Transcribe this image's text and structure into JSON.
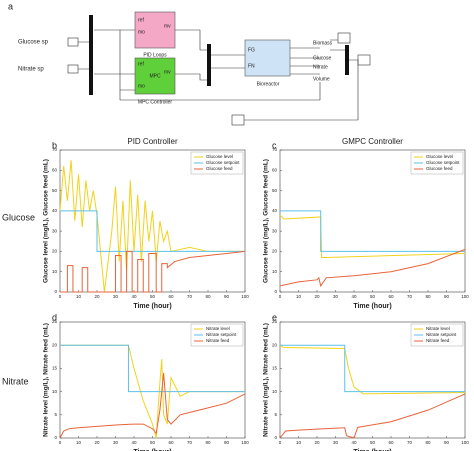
{
  "diagram": {
    "label": "a",
    "inputs": [
      "Glucose sp",
      "Nitrate sp"
    ],
    "pid": {
      "name": "PID Loops",
      "ports": [
        "ref",
        "mo",
        "mv"
      ]
    },
    "mpc": {
      "name": "MPC",
      "caption": "MPC Controller",
      "ports": [
        "ref",
        "mo",
        "mv"
      ]
    },
    "bioreactor": {
      "name": "Bioreactor",
      "ports": [
        "FG",
        "FN"
      ]
    },
    "outputs": [
      "Biomass",
      "Glucose",
      "Nitrate",
      "Volume"
    ]
  },
  "row_labels": [
    "Glucose",
    "Nitrate"
  ],
  "chart_data": [
    {
      "type": "line",
      "panel": "b",
      "title": "PID Controller",
      "xlabel": "Time (hour)",
      "ylabel": "Glucose level (mg/L), Glucose feed (mL)",
      "xlim": [
        0,
        100
      ],
      "xticks": [
        0,
        10,
        20,
        30,
        40,
        50,
        60,
        70,
        80,
        90,
        100
      ],
      "ylim": [
        0,
        70
      ],
      "yticks": [
        0,
        10,
        20,
        30,
        40,
        50,
        60,
        70
      ],
      "legend": "upper right",
      "series": [
        {
          "name": "Glucose level",
          "color": "#f2d21b",
          "x": [
            0,
            2,
            4,
            6,
            8,
            10,
            12,
            14,
            16,
            18,
            20,
            24,
            28,
            30,
            32,
            34,
            36,
            38,
            40,
            42,
            44,
            46,
            48,
            50,
            52,
            54,
            56,
            58,
            60,
            70,
            80,
            90,
            100
          ],
          "values": [
            40,
            62,
            45,
            65,
            35,
            58,
            32,
            55,
            40,
            50,
            38,
            0,
            30,
            52,
            15,
            45,
            10,
            55,
            20,
            48,
            15,
            45,
            25,
            40,
            15,
            35,
            25,
            30,
            20,
            22,
            20,
            20,
            20
          ]
        },
        {
          "name": "Glucose setpoint",
          "color": "#5bc0eb",
          "x": [
            0,
            20,
            20,
            100
          ],
          "values": [
            40,
            40,
            20,
            20
          ]
        },
        {
          "name": "Glucose feed",
          "color": "#e8633a",
          "x": [
            0,
            4,
            4,
            7,
            7,
            12,
            12,
            15,
            15,
            30,
            30,
            33,
            33,
            36,
            36,
            39,
            39,
            42,
            42,
            45,
            45,
            48,
            48,
            52,
            52,
            55,
            55,
            58,
            58,
            62,
            70,
            80,
            90,
            100
          ],
          "values": [
            0,
            0,
            13,
            13,
            0,
            0,
            12,
            12,
            0,
            0,
            18,
            18,
            0,
            0,
            20,
            20,
            0,
            0,
            16,
            16,
            0,
            0,
            19,
            19,
            0,
            0,
            14,
            14,
            12,
            15,
            17,
            18,
            19,
            20
          ]
        }
      ]
    },
    {
      "type": "line",
      "panel": "c",
      "title": "GMPC Controller",
      "xlabel": "Time (hour)",
      "ylabel": "Glucose level (mg/L), Glucose feed (mL)",
      "xlim": [
        0,
        100
      ],
      "xticks": [
        0,
        10,
        20,
        30,
        40,
        50,
        60,
        70,
        80,
        90,
        100
      ],
      "ylim": [
        0,
        70
      ],
      "yticks": [
        0,
        10,
        20,
        30,
        40,
        50,
        60,
        70
      ],
      "legend": "upper right",
      "series": [
        {
          "name": "Glucose level",
          "color": "#f2d21b",
          "x": [
            0,
            2,
            22,
            22.5,
            25,
            100
          ],
          "values": [
            38,
            36,
            37,
            17,
            17,
            19
          ]
        },
        {
          "name": "Glucose setpoint",
          "color": "#5bc0eb",
          "x": [
            0,
            22,
            22,
            100
          ],
          "values": [
            40,
            40,
            20,
            20
          ]
        },
        {
          "name": "Glucose feed",
          "color": "#e8633a",
          "x": [
            0,
            10,
            20,
            21,
            22,
            25,
            40,
            60,
            80,
            100
          ],
          "values": [
            3,
            5,
            6,
            7,
            3,
            7,
            8,
            10,
            14,
            21
          ]
        }
      ]
    },
    {
      "type": "line",
      "panel": "d",
      "xlabel": "Time (hour)",
      "ylabel": "Nitrate level (mg/L), Nitrate feed (mL)",
      "xlim": [
        0,
        100
      ],
      "xticks": [
        0,
        10,
        20,
        30,
        40,
        50,
        60,
        70,
        80,
        90,
        100
      ],
      "ylim": [
        0,
        25
      ],
      "yticks": [
        0,
        5,
        10,
        15,
        20,
        25
      ],
      "legend": "upper right",
      "series": [
        {
          "name": "Nitrate level",
          "color": "#f2d21b",
          "x": [
            0,
            37,
            40,
            45,
            50,
            52,
            54,
            55,
            56,
            58,
            60,
            65,
            70,
            80,
            100
          ],
          "values": [
            20,
            20,
            15,
            8,
            3,
            0,
            12,
            17,
            5,
            3,
            13,
            9,
            10,
            10,
            10
          ]
        },
        {
          "name": "Nitrate setpoint",
          "color": "#5bc0eb",
          "x": [
            0,
            37,
            37,
            100
          ],
          "values": [
            20,
            20,
            10,
            10
          ]
        },
        {
          "name": "Nitrate feed",
          "color": "#e8633a",
          "x": [
            0,
            2,
            5,
            10,
            20,
            30,
            40,
            45,
            50,
            52,
            54,
            56,
            58,
            60,
            65,
            70,
            80,
            90,
            100
          ],
          "values": [
            0,
            1.5,
            2,
            2.2,
            2.5,
            2.8,
            3,
            3,
            2,
            1,
            6,
            14,
            4,
            3,
            5,
            5.5,
            6.5,
            7.5,
            9.5
          ]
        }
      ]
    },
    {
      "type": "line",
      "panel": "e",
      "xlabel": "Time (hour)",
      "ylabel": "Nitrate level (mg/L), Nitrate feed (mL)",
      "xlim": [
        0,
        100
      ],
      "xticks": [
        0,
        10,
        20,
        30,
        40,
        50,
        60,
        70,
        80,
        90,
        100
      ],
      "ylim": [
        0,
        25
      ],
      "yticks": [
        0,
        5,
        10,
        15,
        20,
        25
      ],
      "legend": "upper right",
      "series": [
        {
          "name": "Nitrate level",
          "color": "#f2d21b",
          "x": [
            0,
            2,
            35,
            37,
            40,
            45,
            100
          ],
          "values": [
            20,
            19.5,
            19.3,
            15,
            11,
            9.5,
            9.8
          ]
        },
        {
          "name": "Nitrate setpoint",
          "color": "#5bc0eb",
          "x": [
            0,
            35,
            35,
            100
          ],
          "values": [
            20,
            20,
            10,
            10
          ]
        },
        {
          "name": "Nitrate feed",
          "color": "#e8633a",
          "x": [
            0,
            3,
            10,
            20,
            35,
            36,
            40,
            42,
            60,
            80,
            100
          ],
          "values": [
            0,
            1.5,
            1.7,
            1.9,
            2.2,
            0.5,
            0,
            2.3,
            3.5,
            6,
            9.5
          ]
        }
      ]
    }
  ]
}
